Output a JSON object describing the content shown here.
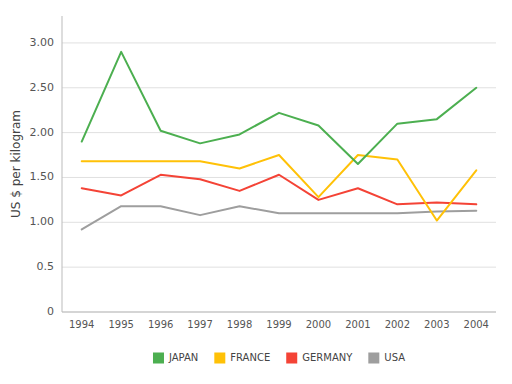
{
  "chart_data": {
    "type": "line",
    "y_label": "US $ per kilogram",
    "x": [
      1994,
      1995,
      1996,
      1997,
      1998,
      1999,
      2000,
      2001,
      2002,
      2003,
      2004
    ],
    "series": [
      {
        "name": "JAPAN",
        "color": "#4caf50",
        "values": [
          1.9,
          2.9,
          2.02,
          1.88,
          1.98,
          2.22,
          2.08,
          1.65,
          2.1,
          2.15,
          2.5
        ]
      },
      {
        "name": "FRANCE",
        "color": "#ffc107",
        "values": [
          1.68,
          1.68,
          1.68,
          1.68,
          1.6,
          1.75,
          1.28,
          1.75,
          1.7,
          1.02,
          1.58
        ]
      },
      {
        "name": "GERMANY",
        "color": "#f44336",
        "values": [
          1.38,
          1.3,
          1.53,
          1.48,
          1.35,
          1.53,
          1.25,
          1.38,
          1.2,
          1.22,
          1.2
        ]
      },
      {
        "name": "USA",
        "color": "#9e9e9e",
        "values": [
          0.92,
          1.18,
          1.18,
          1.08,
          1.18,
          1.1,
          1.1,
          1.1,
          1.1,
          1.12,
          1.13
        ]
      }
    ],
    "xlim": [
      1993.5,
      2004.5
    ],
    "xticks": [
      1994,
      1995,
      1996,
      1997,
      1998,
      1999,
      2000,
      2001,
      2002,
      2003,
      2004
    ],
    "ylim": [
      0,
      3.3
    ],
    "yticks": [
      0,
      0.5,
      {
        "value": 1,
        "label": "1.00"
      },
      {
        "value": 1.5,
        "label": "1.50"
      },
      {
        "value": 2,
        "label": "2.00"
      },
      {
        "value": 2.5,
        "label": "2.50"
      },
      {
        "value": 3,
        "label": "3.00"
      }
    ],
    "grid": true,
    "legend": "bottom"
  }
}
